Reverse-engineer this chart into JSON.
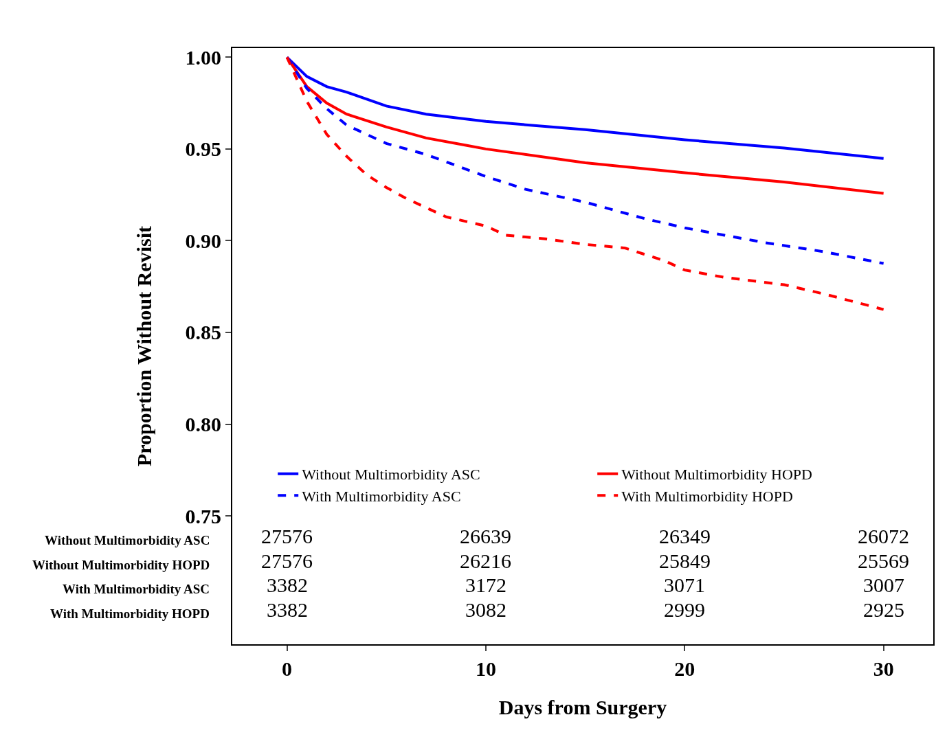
{
  "chart_data": {
    "type": "line",
    "xlabel": "Days from Surgery",
    "ylabel": "Proportion Without Revisit",
    "xlim": [
      -2.75,
      32.5
    ],
    "ylim": [
      0.68,
      1.005
    ],
    "xticks": [
      0,
      10,
      20,
      30
    ],
    "yticks": [
      {
        "value": 0.75,
        "label": "0.75"
      },
      {
        "value": 0.8,
        "label": "0.80"
      },
      {
        "value": 0.85,
        "label": "0.85"
      },
      {
        "value": 0.9,
        "label": "0.90"
      },
      {
        "value": 0.95,
        "label": "0.95"
      },
      {
        "value": 1.0,
        "label": "1.00"
      }
    ],
    "legend": "bottom",
    "marker": "none",
    "series": [
      {
        "name": "Without Multimorbidity ASC",
        "color": "#0000ff",
        "line_style": "solid",
        "x": [
          0,
          1,
          2,
          3,
          5,
          7,
          10,
          15,
          20,
          25,
          30
        ],
        "values": [
          1.0,
          0.9895,
          0.984,
          0.981,
          0.9734,
          0.969,
          0.965,
          0.9605,
          0.955,
          0.9505,
          0.9448
        ]
      },
      {
        "name": "Without Multimorbidity HOPD",
        "color": "#ff0000",
        "line_style": "solid",
        "x": [
          0,
          1,
          2,
          3,
          5,
          7,
          9,
          10,
          15,
          20,
          25,
          30
        ],
        "values": [
          1.0,
          0.984,
          0.975,
          0.969,
          0.962,
          0.956,
          0.952,
          0.95,
          0.9425,
          0.937,
          0.932,
          0.9258
        ]
      },
      {
        "name": "With Multimorbidity ASC",
        "color": "#0000ff",
        "line_style": "dashed",
        "x": [
          0,
          1,
          2,
          3,
          5,
          7,
          10,
          12,
          15,
          18,
          20,
          22,
          24,
          27,
          30
        ],
        "values": [
          1.0,
          0.983,
          0.972,
          0.963,
          0.953,
          0.947,
          0.935,
          0.928,
          0.921,
          0.912,
          0.907,
          0.903,
          0.899,
          0.894,
          0.8876
        ]
      },
      {
        "name": "With Multimorbidity HOPD",
        "color": "#ff0000",
        "line_style": "dashed",
        "x": [
          0,
          1,
          2,
          3,
          4,
          5,
          6,
          8,
          10,
          11,
          13,
          15,
          17,
          19,
          20,
          22,
          25,
          27,
          30
        ],
        "values": [
          1.0,
          0.976,
          0.958,
          0.946,
          0.936,
          0.929,
          0.923,
          0.913,
          0.908,
          0.903,
          0.901,
          0.898,
          0.896,
          0.889,
          0.884,
          0.88,
          0.876,
          0.871,
          0.8625
        ]
      }
    ],
    "annotations": [
      "Without Multimorbidity ASC",
      "Without Multimorbidity HOPD",
      "With Multimorbidity ASC",
      "With Multimorbidity HOPD",
      "27576",
      "26639",
      "26349",
      "26072",
      "27576",
      "26216",
      "25849",
      "25569",
      "3382",
      "3172",
      "3071",
      "3007",
      "3382",
      "3082",
      "2999",
      "2925"
    ]
  }
}
